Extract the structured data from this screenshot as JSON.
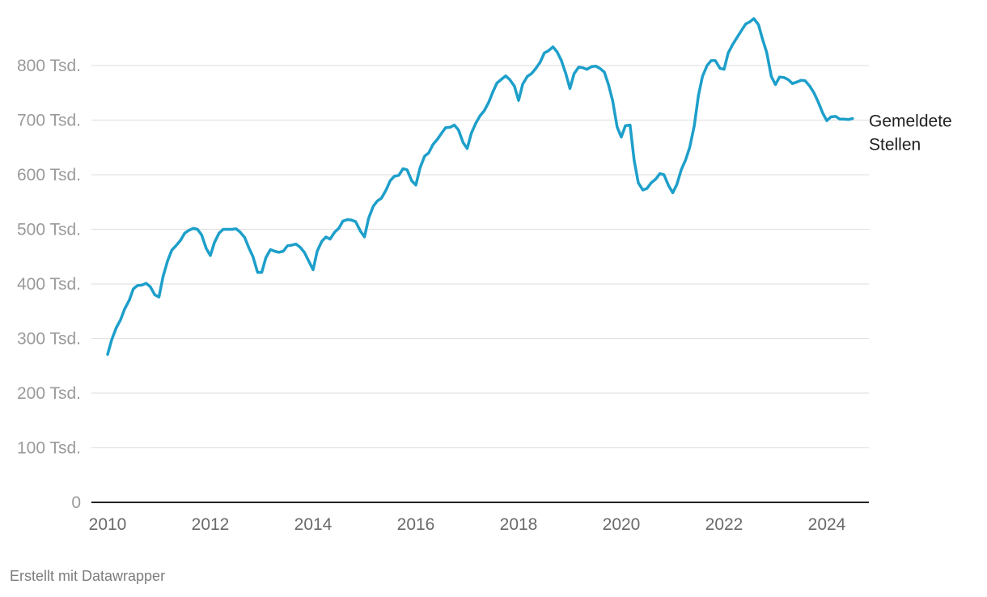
{
  "colors": {
    "line": "#1d9fca",
    "grid": "#e3e3e3",
    "axis": "#222222"
  },
  "footer": {
    "credit": "Erstellt mit Datawrapper"
  },
  "chart_data": {
    "type": "line",
    "title": "",
    "xlabel": "",
    "ylabel": "",
    "xlim": [
      2010,
      2024.6
    ],
    "ylim": [
      0,
      880000
    ],
    "grid": true,
    "y_ticks": [
      {
        "value": 0,
        "label": "0"
      },
      {
        "value": 100000,
        "label": "100 Tsd."
      },
      {
        "value": 200000,
        "label": "200 Tsd."
      },
      {
        "value": 300000,
        "label": "300 Tsd."
      },
      {
        "value": 400000,
        "label": "400 Tsd."
      },
      {
        "value": 500000,
        "label": "500 Tsd."
      },
      {
        "value": 600000,
        "label": "600 Tsd."
      },
      {
        "value": 700000,
        "label": "700 Tsd."
      },
      {
        "value": 800000,
        "label": "800 Tsd."
      }
    ],
    "x_ticks": [
      {
        "value": 2010,
        "label": "2010"
      },
      {
        "value": 2012,
        "label": "2012"
      },
      {
        "value": 2014,
        "label": "2014"
      },
      {
        "value": 2016,
        "label": "2016"
      },
      {
        "value": 2018,
        "label": "2018"
      },
      {
        "value": 2020,
        "label": "2020"
      },
      {
        "value": 2022,
        "label": "2022"
      },
      {
        "value": 2024,
        "label": "2024"
      }
    ],
    "series": [
      {
        "name": "Gemeldete Stellen",
        "label_lines": [
          "Gemeldete",
          "Stellen"
        ],
        "x": [
          2010.0,
          2010.08,
          2010.17,
          2010.25,
          2010.33,
          2010.42,
          2010.5,
          2010.58,
          2010.67,
          2010.75,
          2010.83,
          2010.92,
          2011.0,
          2011.08,
          2011.17,
          2011.25,
          2011.33,
          2011.42,
          2011.5,
          2011.58,
          2011.67,
          2011.75,
          2011.83,
          2011.92,
          2012.0,
          2012.08,
          2012.17,
          2012.25,
          2012.33,
          2012.42,
          2012.5,
          2012.58,
          2012.67,
          2012.75,
          2012.83,
          2012.92,
          2013.0,
          2013.08,
          2013.17,
          2013.25,
          2013.33,
          2013.42,
          2013.5,
          2013.58,
          2013.67,
          2013.75,
          2013.83,
          2013.92,
          2014.0,
          2014.08,
          2014.17,
          2014.25,
          2014.33,
          2014.42,
          2014.5,
          2014.58,
          2014.67,
          2014.75,
          2014.83,
          2014.92,
          2015.0,
          2015.08,
          2015.17,
          2015.25,
          2015.33,
          2015.42,
          2015.5,
          2015.58,
          2015.67,
          2015.75,
          2015.83,
          2015.92,
          2016.0,
          2016.08,
          2016.17,
          2016.25,
          2016.33,
          2016.42,
          2016.5,
          2016.58,
          2016.67,
          2016.75,
          2016.83,
          2016.92,
          2017.0,
          2017.08,
          2017.17,
          2017.25,
          2017.33,
          2017.42,
          2017.5,
          2017.58,
          2017.67,
          2017.75,
          2017.83,
          2017.92,
          2018.0,
          2018.08,
          2018.17,
          2018.25,
          2018.33,
          2018.42,
          2018.5,
          2018.58,
          2018.67,
          2018.75,
          2018.83,
          2018.92,
          2019.0,
          2019.08,
          2019.17,
          2019.25,
          2019.33,
          2019.42,
          2019.5,
          2019.58,
          2019.67,
          2019.75,
          2019.83,
          2019.92,
          2020.0,
          2020.08,
          2020.17,
          2020.25,
          2020.33,
          2020.42,
          2020.5,
          2020.58,
          2020.67,
          2020.75,
          2020.83,
          2020.92,
          2021.0,
          2021.08,
          2021.17,
          2021.25,
          2021.33,
          2021.42,
          2021.5,
          2021.58,
          2021.67,
          2021.75,
          2021.83,
          2021.92,
          2022.0,
          2022.08,
          2022.17,
          2022.25,
          2022.33,
          2022.42,
          2022.5,
          2022.58,
          2022.67,
          2022.75,
          2022.83,
          2022.92,
          2023.0,
          2023.08,
          2023.17,
          2023.25,
          2023.33,
          2023.42,
          2023.5,
          2023.58,
          2023.67,
          2023.75,
          2023.83,
          2023.92,
          2024.0,
          2024.08,
          2024.17,
          2024.25,
          2024.33,
          2024.42,
          2024.5
        ],
        "values": [
          271000,
          298000,
          320000,
          334000,
          354000,
          370000,
          391000,
          397000,
          398000,
          401000,
          395000,
          380000,
          376000,
          414000,
          443000,
          462000,
          470000,
          480000,
          493000,
          498000,
          502000,
          500000,
          490000,
          465000,
          452000,
          476000,
          493000,
          500000,
          500000,
          500000,
          501000,
          495000,
          485000,
          466000,
          450000,
          421000,
          421000,
          448000,
          463000,
          460000,
          458000,
          460000,
          470000,
          471000,
          473000,
          467000,
          458000,
          441000,
          426000,
          460000,
          478000,
          486000,
          482000,
          495000,
          502000,
          515000,
          518000,
          517000,
          514000,
          497000,
          486000,
          520000,
          542000,
          552000,
          557000,
          572000,
          589000,
          597000,
          599000,
          611000,
          609000,
          589000,
          581000,
          612000,
          634000,
          640000,
          655000,
          665000,
          676000,
          686000,
          687000,
          691000,
          682000,
          659000,
          648000,
          676000,
          695000,
          708000,
          717000,
          733000,
          752000,
          768000,
          775000,
          781000,
          774000,
          762000,
          736000,
          766000,
          780000,
          785000,
          794000,
          806000,
          823000,
          827000,
          834000,
          825000,
          810000,
          785000,
          758000,
          785000,
          797000,
          796000,
          793000,
          798000,
          799000,
          795000,
          788000,
          765000,
          736000,
          687000,
          669000,
          690000,
          691000,
          626000,
          585000,
          572000,
          575000,
          585000,
          592000,
          602000,
          600000,
          580000,
          567000,
          582000,
          610000,
          627000,
          650000,
          690000,
          745000,
          780000,
          800000,
          809000,
          809000,
          795000,
          793000,
          823000,
          839000,
          851000,
          863000,
          876000,
          880000,
          886000,
          875000,
          848000,
          824000,
          780000,
          765000,
          779000,
          778000,
          774000,
          767000,
          770000,
          773000,
          772000,
          762000,
          750000,
          734000,
          713000,
          699000,
          706000,
          707000,
          702000,
          702000,
          701000,
          703000
        ]
      }
    ]
  }
}
